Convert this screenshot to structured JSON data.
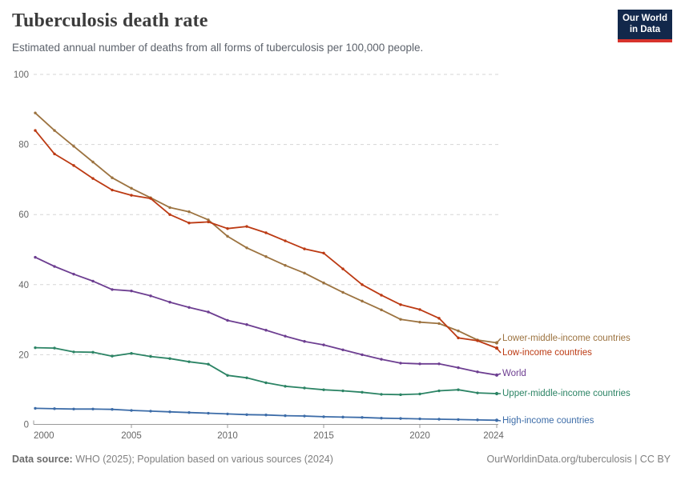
{
  "header": {
    "title": "Tuberculosis death rate",
    "subtitle": "Estimated annual number of deaths from all forms of tuberculosis per 100,000 people.",
    "logo_line1": "Our World",
    "logo_line2": "in Data"
  },
  "footer": {
    "source_label": "Data source:",
    "source_rest": " WHO (2025); Population based on various sources (2024)",
    "license_text": "OurWorldinData.org/tuberculosis | CC BY"
  },
  "chart_data": {
    "type": "line",
    "title": "Tuberculosis death rate",
    "subtitle": "Estimated annual number of deaths from all forms of tuberculosis per 100,000 people.",
    "xlabel": "",
    "ylabel": "",
    "ylim": [
      0,
      100
    ],
    "yticks": [
      0,
      20,
      40,
      60,
      80,
      100
    ],
    "xticks": [
      2000,
      2005,
      2010,
      2015,
      2020,
      2024
    ],
    "grid": "horizontal-dashed",
    "legend_position": "right-of-line-ends",
    "x": [
      2000,
      2001,
      2002,
      2003,
      2004,
      2005,
      2006,
      2007,
      2008,
      2009,
      2010,
      2011,
      2012,
      2013,
      2014,
      2015,
      2016,
      2017,
      2018,
      2019,
      2020,
      2021,
      2022,
      2023,
      2024
    ],
    "series": [
      {
        "name": "Lower-middle-income countries",
        "color": "#9C7340",
        "values": [
          89,
          84,
          79.5,
          75,
          70.5,
          67.5,
          64.8,
          62,
          60.8,
          58.5,
          53.8,
          50.5,
          48,
          45.5,
          43.3,
          40.5,
          37.8,
          35.3,
          32.8,
          30.1,
          29.3,
          28.9,
          26.8,
          24.2,
          23.4
        ]
      },
      {
        "name": "Low-income countries",
        "color": "#BC3A13",
        "values": [
          84,
          77.3,
          74,
          70.3,
          67,
          65.5,
          64.6,
          60,
          57.6,
          57.9,
          56,
          56.6,
          54.8,
          52.5,
          50.2,
          49,
          44.5,
          40,
          37,
          34.3,
          32.9,
          30.4,
          24.8,
          24,
          21.9
        ]
      },
      {
        "name": "World",
        "color": "#6D3E91",
        "values": [
          47.8,
          45.2,
          43,
          41,
          38.6,
          38.2,
          36.8,
          35,
          33.5,
          32.2,
          29.8,
          28.6,
          27,
          25.3,
          23.8,
          22.8,
          21.4,
          20,
          18.7,
          17.6,
          17.4,
          17.4,
          16.3,
          15.1,
          14.2
        ]
      },
      {
        "name": "Upper-middle-income countries",
        "color": "#2C8465",
        "values": [
          22,
          21.9,
          20.8,
          20.7,
          19.6,
          20.4,
          19.5,
          18.9,
          18,
          17.3,
          14.1,
          13.4,
          12,
          11,
          10.5,
          10,
          9.7,
          9.3,
          8.7,
          8.6,
          8.8,
          9.7,
          10,
          9.1,
          8.9
        ]
      },
      {
        "name": "High-income countries",
        "color": "#3C6CA8",
        "values": [
          4.7,
          4.6,
          4.5,
          4.5,
          4.4,
          4.1,
          3.9,
          3.7,
          3.5,
          3.3,
          3.1,
          2.9,
          2.8,
          2.6,
          2.5,
          2.3,
          2.2,
          2.1,
          1.9,
          1.8,
          1.7,
          1.6,
          1.5,
          1.4,
          1.3
        ]
      }
    ]
  }
}
